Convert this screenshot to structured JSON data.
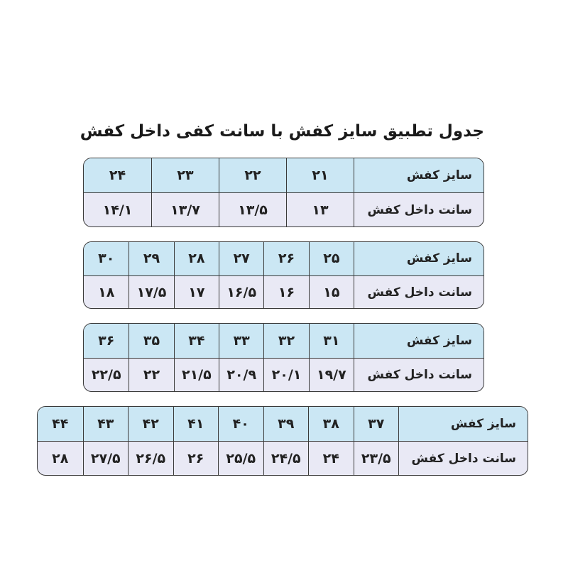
{
  "title": "جدول تطبیق سایز کفش با سانت کفی داخل کفش",
  "row_labels": {
    "size": "سایز کفش",
    "cm": "سانت داخل کفش"
  },
  "colors": {
    "header_row": "#cbe7f4",
    "value_row": "#e9e9f5",
    "border": "#3a3a3a"
  },
  "tables": [
    {
      "sizes": [
        "۲۱",
        "۲۲",
        "۲۳",
        "۲۴"
      ],
      "cm": [
        "۱۳",
        "۱۳/۵",
        "۱۳/۷",
        "۱۴/۱"
      ]
    },
    {
      "sizes": [
        "۲۵",
        "۲۶",
        "۲۷",
        "۲۸",
        "۲۹",
        "۳۰"
      ],
      "cm": [
        "۱۵",
        "۱۶",
        "۱۶/۵",
        "۱۷",
        "۱۷/۵",
        "۱۸"
      ]
    },
    {
      "sizes": [
        "۳۱",
        "۳۲",
        "۳۳",
        "۳۴",
        "۳۵",
        "۳۶"
      ],
      "cm": [
        "۱۹/۷",
        "۲۰/۱",
        "۲۰/۹",
        "۲۱/۵",
        "۲۲",
        "۲۲/۵"
      ]
    },
    {
      "sizes": [
        "۳۷",
        "۳۸",
        "۳۹",
        "۴۰",
        "۴۱",
        "۴۲",
        "۴۳",
        "۴۴"
      ],
      "cm": [
        "۲۳/۵",
        "۲۴",
        "۲۴/۵",
        "۲۵/۵",
        "۲۶",
        "۲۶/۵",
        "۲۷/۵",
        "۲۸"
      ]
    }
  ]
}
